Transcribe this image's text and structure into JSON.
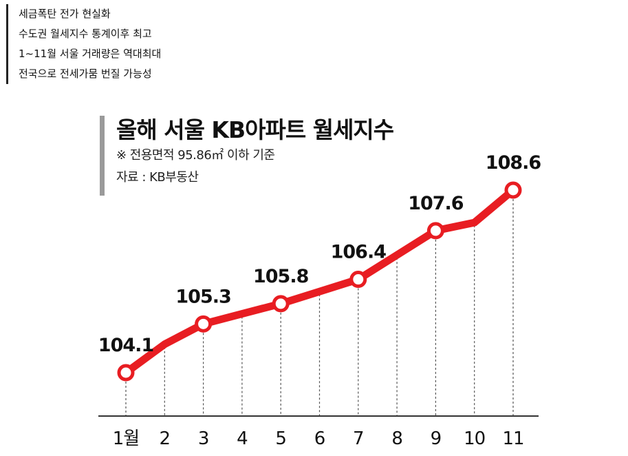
{
  "summary_lines": [
    "세금폭탄 전가 현실화",
    "수도권 월세지수 통계이후 최고",
    "1~11월 서울 거래량은 역대최대",
    "전국으로 전세가뭄 번질 가능성"
  ],
  "colors": {
    "line": "#e81d22",
    "axis": "#333333",
    "guide": "#555555",
    "title_bar": "#9a9a9a"
  },
  "chart_data": {
    "type": "line",
    "title": "올해 서울 KB아파트 월세지수",
    "subtitle": "※ 전용면적 95.86㎡ 이하 기준",
    "source": "자료 : KB부동산",
    "xlabel": "",
    "ylabel": "",
    "categories": [
      "1월",
      "2",
      "3",
      "4",
      "5",
      "6",
      "7",
      "8",
      "9",
      "10",
      "11"
    ],
    "series": [
      {
        "values": [
          104.1,
          104.8,
          105.3,
          105.55,
          105.8,
          106.1,
          106.4,
          107.0,
          107.6,
          107.8,
          108.6
        ],
        "labeled": [
          true,
          false,
          true,
          false,
          true,
          false,
          true,
          false,
          true,
          false,
          true
        ],
        "labels": [
          "104.1",
          "",
          "105.3",
          "",
          "105.8",
          "",
          "106.4",
          "",
          "107.6",
          "",
          "108.6"
        ]
      }
    ],
    "ylim": [
      104.1,
      108.6
    ],
    "grid": false,
    "legend": "none"
  }
}
